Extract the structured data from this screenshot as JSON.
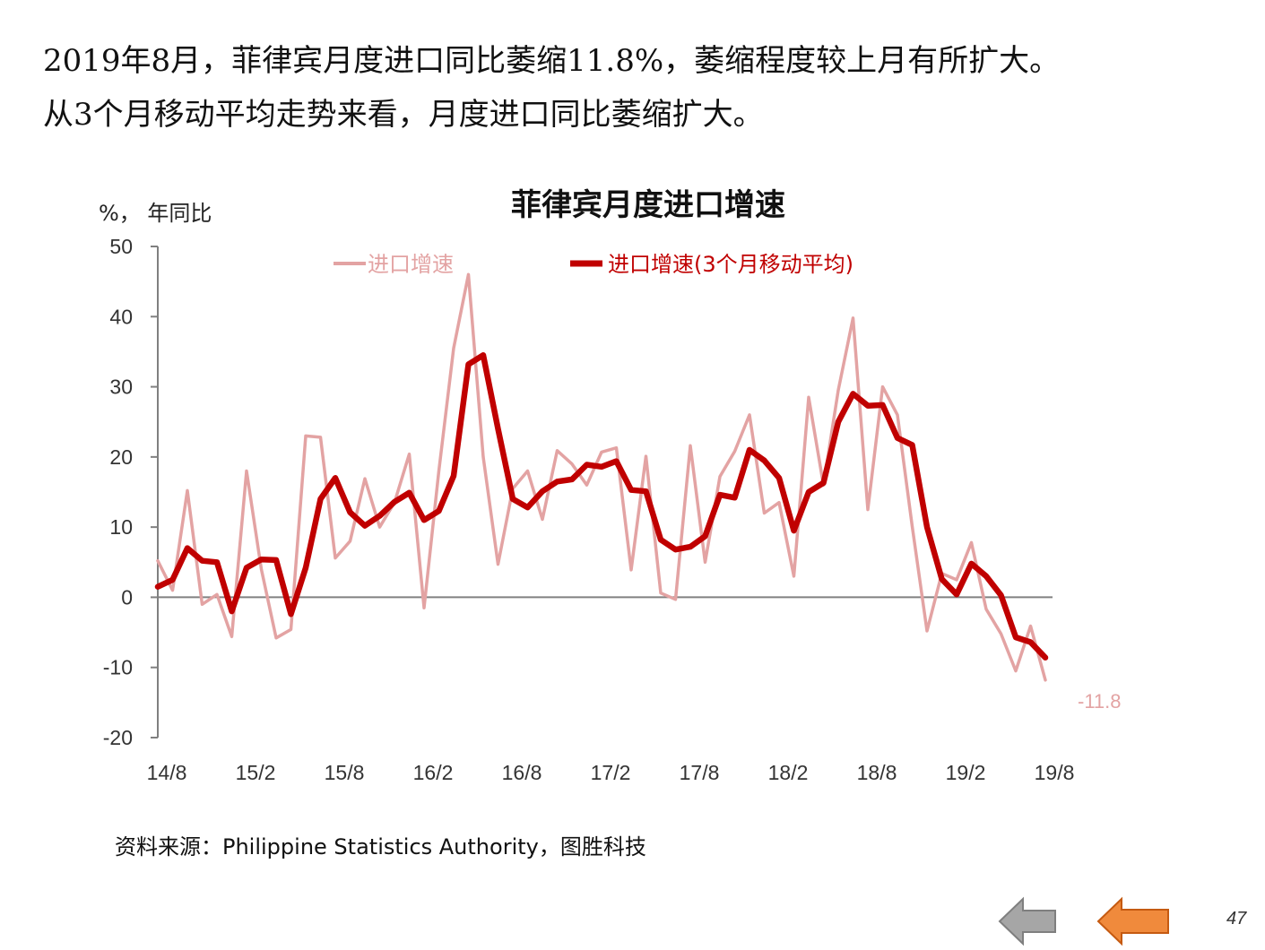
{
  "headline": {
    "line1": "2019年8月，菲律宾月度进口同比萎缩11.8%，萎缩程度较上月有所扩大。",
    "line2": "从3个月移动平均走势来看，月度进口同比萎缩扩大。"
  },
  "source": "资料来源：Philippine Statistics Authority，图胜科技",
  "page_number": "47",
  "nav": {
    "back_icon": "gray-left-arrow-icon",
    "prev_icon": "orange-left-arrow-icon"
  },
  "colors": {
    "monthly": "#e3a3a3",
    "moving_avg": "#c00000",
    "axis": "#808080"
  },
  "chart_data": {
    "type": "line",
    "title": "菲律宾月度进口增速",
    "ylabel": "%， 年同比",
    "ylim": [
      -20,
      50
    ],
    "yticks": [
      50,
      40,
      30,
      20,
      10,
      0,
      -10,
      -20
    ],
    "x_tick_labels": [
      "14/8",
      "15/2",
      "15/8",
      "16/2",
      "16/8",
      "17/2",
      "17/8",
      "18/2",
      "18/8",
      "19/2",
      "19/8"
    ],
    "legend_position": "top",
    "end_label": "-11.8",
    "series": [
      {
        "name": "进口增速",
        "values": [
          5.2,
          1.0,
          15.2,
          -1.0,
          0.4,
          -5.6,
          18.0,
          4.0,
          -5.8,
          -4.6,
          23.0,
          22.8,
          5.6,
          8.0,
          16.9,
          10.0,
          13.5,
          20.4,
          -1.5,
          18.0,
          35.5,
          46.0,
          20.0,
          4.7,
          15.5,
          18.0,
          11.1,
          20.9,
          19.0,
          16.0,
          20.7,
          21.3,
          3.9,
          20.1,
          0.6,
          -0.3,
          21.6,
          5.0,
          17.2,
          20.8,
          26.0,
          12.0,
          13.5,
          3.0,
          28.5,
          16.0,
          29.5,
          39.8,
          12.5,
          30.0,
          26.0,
          10.1,
          -4.8,
          3.4,
          2.5,
          7.8,
          -1.7,
          -5.2,
          -10.5,
          -4.1,
          -11.8
        ]
      },
      {
        "name": "进口增速(3个月移动平均)",
        "values": [
          1.5,
          2.5,
          7.0,
          5.2,
          5.0,
          -2.0,
          4.2,
          5.4,
          5.3,
          -2.4,
          4.2,
          14.0,
          17.0,
          12.1,
          10.2,
          11.6,
          13.6,
          14.9,
          11.0,
          12.3,
          17.3,
          33.2,
          34.5,
          24.0,
          14.0,
          12.8,
          15.1,
          16.5,
          16.8,
          18.9,
          18.6,
          19.4,
          15.3,
          15.1,
          8.2,
          6.8,
          7.2,
          8.7,
          14.6,
          14.2,
          21.0,
          19.5,
          17.0,
          9.5,
          15.0,
          16.3,
          25.0,
          29.0,
          27.3,
          27.4,
          22.7,
          21.7,
          10.0,
          2.6,
          0.4,
          4.8,
          3.0,
          0.3,
          -5.7,
          -6.4,
          -8.6
        ]
      }
    ]
  }
}
